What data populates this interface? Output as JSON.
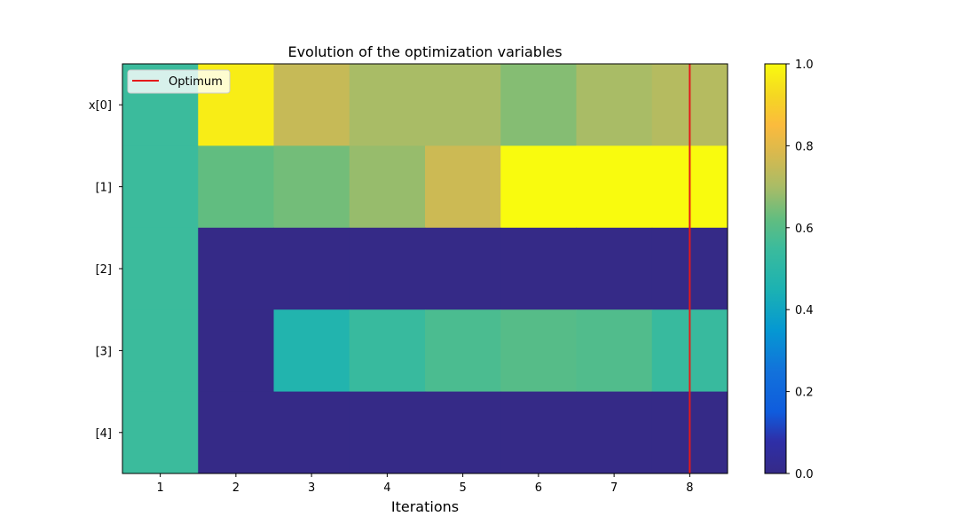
{
  "chart_data": {
    "type": "heatmap",
    "title": "Evolution of the optimization variables",
    "xlabel": "Iterations",
    "ylabel": "",
    "x_categories": [
      "1",
      "2",
      "3",
      "4",
      "5",
      "6",
      "7",
      "8"
    ],
    "y_categories": [
      "x[0]",
      "[1]",
      "[2]",
      "[3]",
      "[4]"
    ],
    "values": [
      [
        0.55,
        0.97,
        0.75,
        0.7,
        0.7,
        0.66,
        0.7,
        0.72
      ],
      [
        0.55,
        0.62,
        0.64,
        0.68,
        0.76,
        1.0,
        1.0,
        1.0
      ],
      [
        0.55,
        0.0,
        0.0,
        0.0,
        0.0,
        0.0,
        0.0,
        0.0
      ],
      [
        0.55,
        0.0,
        0.47,
        0.54,
        0.58,
        0.6,
        0.59,
        0.54
      ],
      [
        0.55,
        0.0,
        0.0,
        0.0,
        0.0,
        0.0,
        0.0,
        0.0
      ]
    ],
    "vmin": 0.0,
    "vmax": 1.0,
    "colorbar_ticks": [
      "0.0",
      "0.2",
      "0.4",
      "0.6",
      "0.8",
      "1.0"
    ],
    "colormap_stops": [
      {
        "v": 0.0,
        "color": "#352a87"
      },
      {
        "v": 0.08,
        "color": "#2e2fa8"
      },
      {
        "v": 0.15,
        "color": "#0f5cdd"
      },
      {
        "v": 0.25,
        "color": "#1272db"
      },
      {
        "v": 0.35,
        "color": "#0598d2"
      },
      {
        "v": 0.45,
        "color": "#1cb2b2"
      },
      {
        "v": 0.55,
        "color": "#3bbb9c"
      },
      {
        "v": 0.62,
        "color": "#61bd80"
      },
      {
        "v": 0.7,
        "color": "#a9bc66"
      },
      {
        "v": 0.78,
        "color": "#d8b94e"
      },
      {
        "v": 0.85,
        "color": "#fbbb3d"
      },
      {
        "v": 0.92,
        "color": "#f5d623"
      },
      {
        "v": 1.0,
        "color": "#f9fb0e"
      }
    ],
    "optimum_line": {
      "x": "8",
      "color": "#e51a1a",
      "label": "Optimum"
    },
    "legend_position": "top-left"
  }
}
